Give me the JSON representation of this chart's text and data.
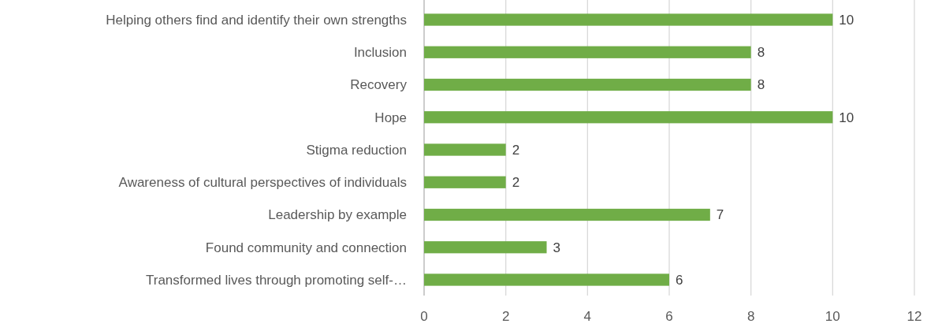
{
  "chart_data": {
    "type": "bar",
    "orientation": "horizontal",
    "categories": [
      "Helping others find and identify their own strengths",
      "Inclusion",
      "Recovery",
      "Hope",
      "Stigma reduction",
      "Awareness of cultural perspectives of individuals",
      "Leadership by example",
      "Found community and connection",
      "Transformed lives through promoting self-…"
    ],
    "values": [
      10,
      8,
      8,
      10,
      2,
      2,
      7,
      3,
      6
    ],
    "color": "#70ad47",
    "xlim": [
      0,
      12
    ],
    "xticks": [
      0,
      2,
      4,
      6,
      8,
      10,
      12
    ],
    "grid": "x",
    "data_labels": true
  }
}
